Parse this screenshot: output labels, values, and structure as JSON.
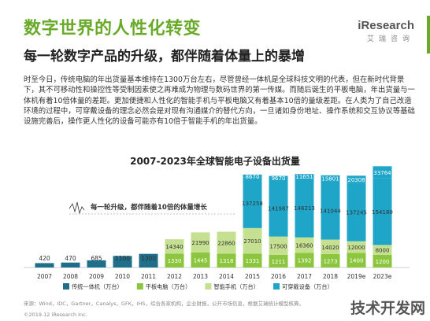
{
  "header": {
    "title": "数字世界的人性化转变",
    "subtitle": "每一轮数字产品的升级，都伴随着体量上的暴增",
    "logo_brand": "iResearch",
    "logo_cn": "艾瑞咨询"
  },
  "body_text": "时至今日，传统电脑的年出货量基本维持在1300万台左右，尽管曾经一体机是全球科技文明的代表，但在新时代背景下，其不可移动性和操控性等受制因素使之再难成为物理与数码世界的第一传媒。而随后诞生的平板电脑，年出货量与一体机有着10倍体量的差距。更加便捷和人性化的智能手机与平板电脑又有着基本10倍的量级差距。在人类为了自己改造环境的过程中，可穿戴设备的理念必然会是对现有沟通媒介的替代方向，一旦诸如身份地址、操作系统和交互协议等基础设施完善后，操作更人性化的设备可能亦有10倍于智能手机的年出货量。",
  "chart_data": {
    "type": "bar",
    "stacked": true,
    "title": "2007-2023年全球智能电子设备出货量",
    "categories": [
      "2007",
      "2008",
      "2009",
      "2010",
      "2011",
      "2012",
      "2013",
      "2014",
      "2015",
      "2016",
      "2017",
      "2018",
      "2019e",
      "2023e"
    ],
    "series": [
      {
        "name": "传统一体机（万台）",
        "color": "#1f6f8b",
        "values": [
          420,
          470,
          685,
          1100,
          1300,
          null,
          null,
          null,
          null,
          null,
          null,
          null,
          null,
          null
        ]
      },
      {
        "name": "平板电脑（万台）",
        "color": "#8cc63f",
        "values": [
          null,
          null,
          null,
          null,
          null,
          1330,
          1445,
          1318,
          1331,
          1211,
          1392,
          1273,
          1400,
          1200
        ]
      },
      {
        "name": "智能手机（万台）",
        "color": "#c5e090",
        "values": [
          null,
          null,
          null,
          null,
          null,
          14340,
          21990,
          22860,
          27010,
          17500,
          16360,
          14020,
          12000,
          8000
        ]
      },
      {
        "name": "可穿戴设备（万台）",
        "color": "#1fa5c8",
        "values": [
          null,
          null,
          null,
          null,
          null,
          null,
          null,
          null,
          137258,
          141987,
          146213,
          141044,
          137245,
          154180
        ]
      },
      {
        "name": "",
        "color": "#1fa5c8",
        "values": [
          null,
          null,
          null,
          null,
          null,
          null,
          null,
          null,
          8670,
          9670,
          11651,
          15801,
          20308,
          33764
        ]
      }
    ],
    "annotation": "每一轮升级，都伴随着10倍的体量增长"
  },
  "footnote": "来源：Wind，IDC，Gartner，Canalys，GFK，IHS，综合各家机构，企业财报，公开市场信息，根据艾瑞统计模型核算。",
  "copyright": "©2019.12 iResearch Inc.",
  "watermark": "技术开发网"
}
